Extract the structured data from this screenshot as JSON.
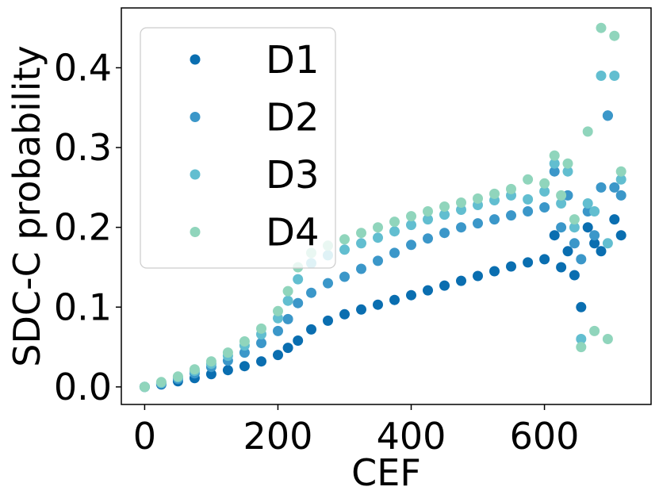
{
  "chart_data": {
    "type": "scatter",
    "title": "",
    "xlabel": "CEF",
    "ylabel": "SDC-C probability",
    "xlim": [
      -35,
      760
    ],
    "ylim": [
      -0.022,
      0.475
    ],
    "xticks": [
      0,
      200,
      400,
      600
    ],
    "xtick_labels": [
      "0",
      "200",
      "400",
      "600"
    ],
    "yticks": [
      0.0,
      0.1,
      0.2,
      0.3,
      0.4
    ],
    "ytick_labels": [
      "0.0",
      "0.1",
      "0.2",
      "0.3",
      "0.4"
    ],
    "grid": false,
    "legend_position": "top-left",
    "series": [
      {
        "name": "D1",
        "color": "#0a6eb0",
        "x": [
          0,
          25,
          50,
          75,
          100,
          125,
          150,
          175,
          200,
          215,
          230,
          250,
          275,
          300,
          325,
          350,
          375,
          400,
          425,
          450,
          475,
          500,
          525,
          550,
          575,
          600,
          615,
          625,
          635,
          645,
          655,
          665,
          675,
          685,
          695,
          705,
          715
        ],
        "y": [
          0.0,
          0.003,
          0.007,
          0.011,
          0.016,
          0.021,
          0.026,
          0.032,
          0.04,
          0.049,
          0.058,
          0.072,
          0.083,
          0.091,
          0.097,
          0.103,
          0.109,
          0.115,
          0.121,
          0.127,
          0.133,
          0.139,
          0.145,
          0.151,
          0.156,
          0.16,
          0.19,
          0.15,
          0.17,
          0.14,
          0.1,
          0.2,
          0.18,
          0.17,
          0.34,
          0.21,
          0.19
        ]
      },
      {
        "name": "D2",
        "color": "#3b97c9",
        "x": [
          0,
          25,
          50,
          75,
          100,
          125,
          150,
          175,
          200,
          215,
          230,
          250,
          275,
          300,
          325,
          350,
          375,
          400,
          425,
          450,
          475,
          500,
          525,
          550,
          575,
          600,
          615,
          625,
          635,
          645,
          655,
          665,
          675,
          685,
          695,
          705,
          715
        ],
        "y": [
          0.0,
          0.004,
          0.01,
          0.017,
          0.025,
          0.033,
          0.043,
          0.055,
          0.07,
          0.085,
          0.105,
          0.118,
          0.13,
          0.138,
          0.148,
          0.158,
          0.168,
          0.178,
          0.186,
          0.193,
          0.2,
          0.205,
          0.21,
          0.215,
          0.22,
          0.225,
          0.27,
          0.2,
          0.24,
          0.18,
          0.16,
          0.22,
          0.19,
          0.25,
          0.34,
          0.25,
          0.24
        ]
      },
      {
        "name": "D3",
        "color": "#62bed0",
        "x": [
          0,
          25,
          50,
          75,
          100,
          125,
          150,
          175,
          200,
          215,
          230,
          250,
          275,
          300,
          325,
          350,
          375,
          400,
          425,
          450,
          475,
          500,
          525,
          550,
          575,
          600,
          615,
          625,
          635,
          645,
          655,
          665,
          675,
          685,
          695,
          705,
          715
        ],
        "y": [
          0.0,
          0.005,
          0.012,
          0.02,
          0.029,
          0.039,
          0.052,
          0.066,
          0.086,
          0.108,
          0.135,
          0.155,
          0.165,
          0.172,
          0.18,
          0.187,
          0.195,
          0.203,
          0.21,
          0.216,
          0.222,
          0.228,
          0.234,
          0.24,
          0.235,
          0.245,
          0.28,
          0.23,
          0.27,
          0.2,
          0.06,
          0.23,
          0.22,
          0.39,
          0.18,
          0.39,
          0.26
        ]
      },
      {
        "name": "D4",
        "color": "#90d5bc",
        "x": [
          0,
          25,
          50,
          75,
          100,
          125,
          150,
          175,
          200,
          215,
          230,
          250,
          275,
          300,
          325,
          350,
          375,
          400,
          425,
          450,
          475,
          500,
          525,
          550,
          575,
          600,
          615,
          625,
          635,
          645,
          655,
          665,
          675,
          685,
          695,
          705,
          715
        ],
        "y": [
          0.0,
          0.006,
          0.013,
          0.022,
          0.032,
          0.043,
          0.057,
          0.073,
          0.095,
          0.12,
          0.15,
          0.168,
          0.177,
          0.185,
          0.193,
          0.2,
          0.207,
          0.214,
          0.22,
          0.226,
          0.231,
          0.236,
          0.242,
          0.248,
          0.26,
          0.255,
          0.29,
          0.24,
          0.28,
          0.21,
          0.05,
          0.32,
          0.07,
          0.45,
          0.06,
          0.44,
          0.27
        ]
      }
    ]
  }
}
